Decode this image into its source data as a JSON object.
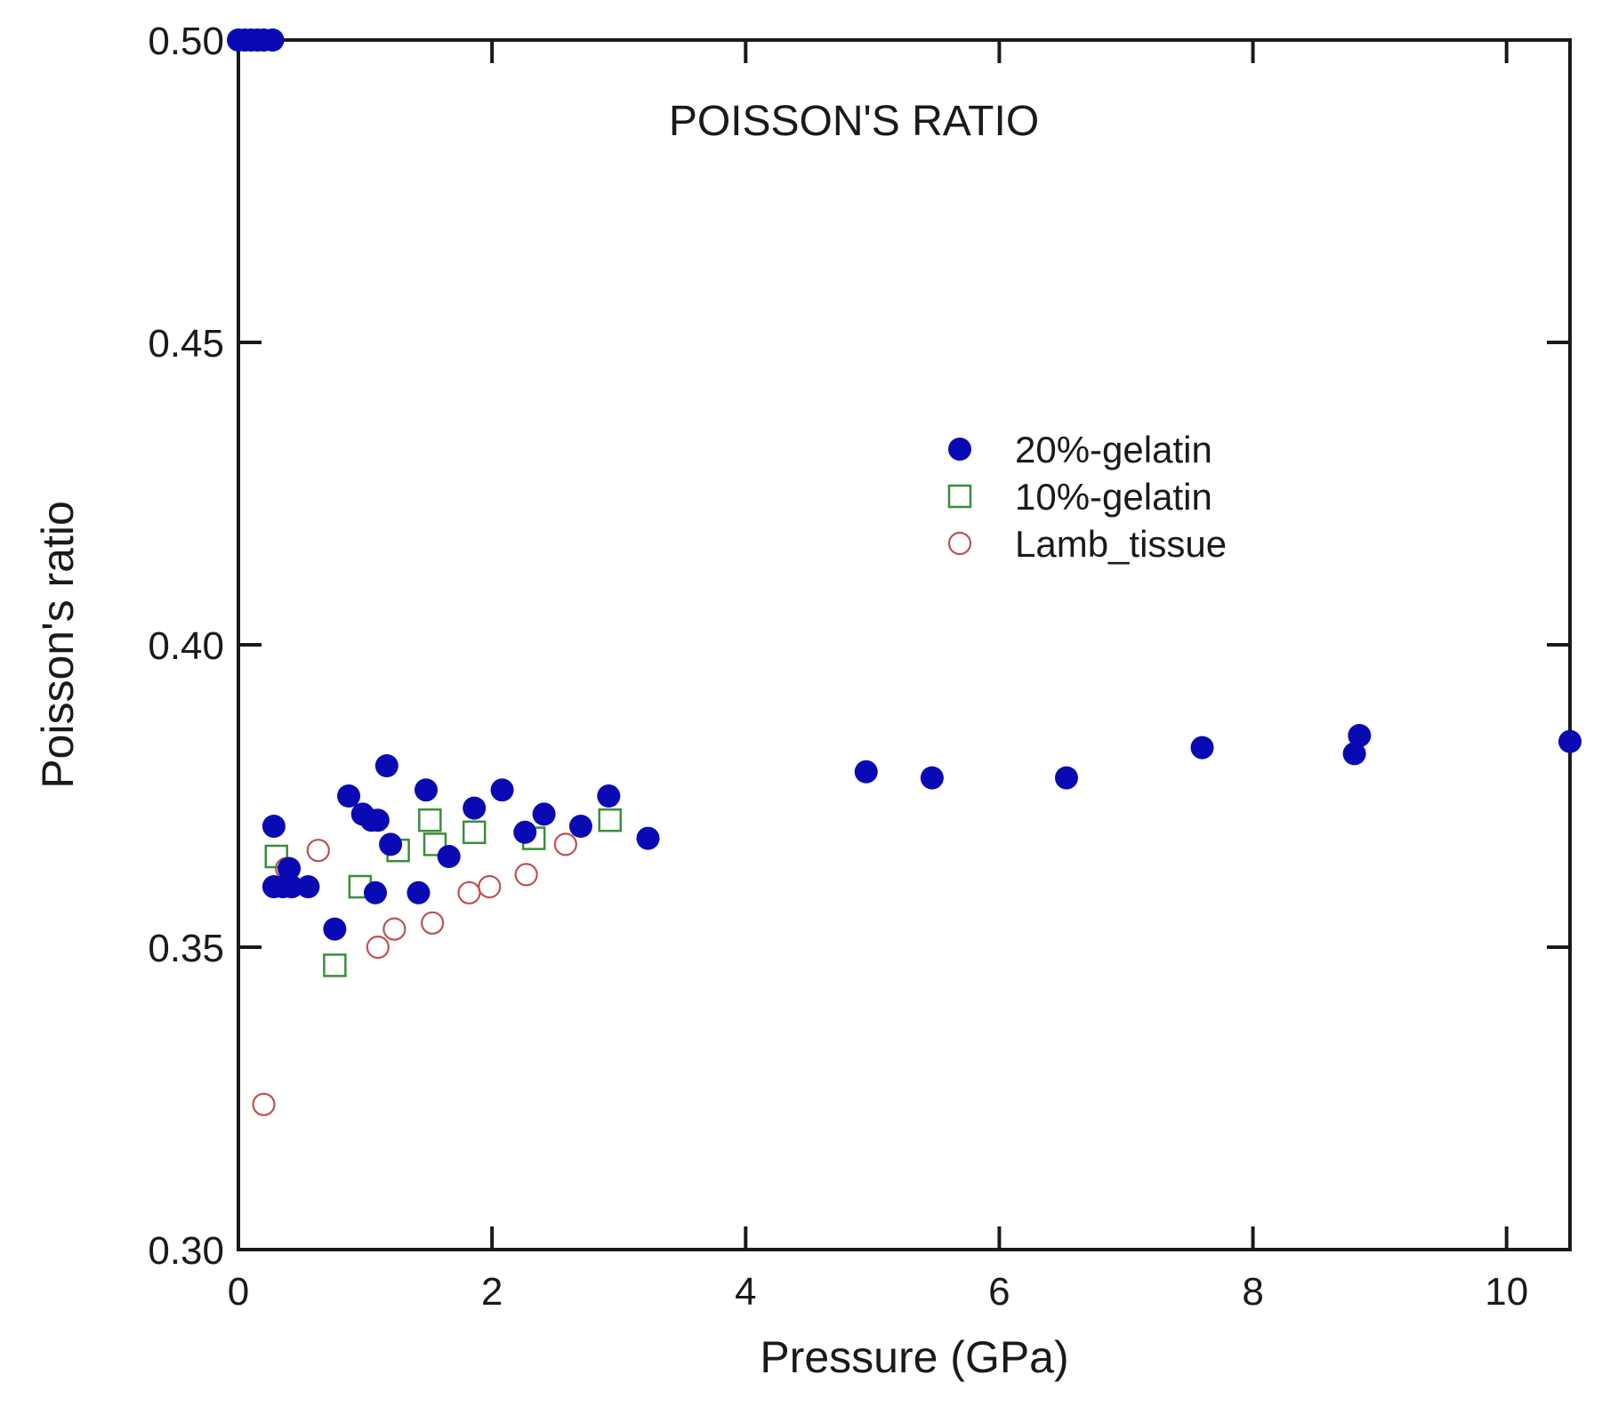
{
  "chart_data": {
    "type": "scatter",
    "title": "POISSON'S RATIO",
    "xlabel": "Pressure (GPa)",
    "ylabel": "Poisson's ratio",
    "xlim": [
      0,
      10.5
    ],
    "ylim": [
      0.3,
      0.5
    ],
    "xticks": [
      0,
      2,
      4,
      6,
      8,
      10
    ],
    "xtick_labels": [
      "0",
      "2",
      "4",
      "6",
      "8",
      "10"
    ],
    "yticks": [
      0.3,
      0.35,
      0.4,
      0.45,
      0.5
    ],
    "ytick_labels": [
      "0.30",
      "0.35",
      "0.40",
      "0.45",
      "0.50"
    ],
    "grid": false,
    "legend_position": "right-center",
    "series": [
      {
        "name": "20%-gelatin",
        "marker": "filled-circle",
        "color": "#0a0ab4",
        "points": [
          [
            0.0,
            0.5
          ],
          [
            0.05,
            0.5
          ],
          [
            0.1,
            0.5
          ],
          [
            0.15,
            0.5
          ],
          [
            0.2,
            0.5
          ],
          [
            0.27,
            0.5
          ],
          [
            0.28,
            0.37
          ],
          [
            0.28,
            0.36
          ],
          [
            0.35,
            0.36
          ],
          [
            0.42,
            0.36
          ],
          [
            0.4,
            0.363
          ],
          [
            0.55,
            0.36
          ],
          [
            0.76,
            0.353
          ],
          [
            0.87,
            0.375
          ],
          [
            0.98,
            0.372
          ],
          [
            1.05,
            0.371
          ],
          [
            1.1,
            0.371
          ],
          [
            1.08,
            0.359
          ],
          [
            1.17,
            0.38
          ],
          [
            1.2,
            0.367
          ],
          [
            1.42,
            0.359
          ],
          [
            1.48,
            0.376
          ],
          [
            1.66,
            0.365
          ],
          [
            1.86,
            0.373
          ],
          [
            2.08,
            0.376
          ],
          [
            2.26,
            0.369
          ],
          [
            2.41,
            0.372
          ],
          [
            2.7,
            0.37
          ],
          [
            2.92,
            0.375
          ],
          [
            3.23,
            0.368
          ],
          [
            4.95,
            0.379
          ],
          [
            5.47,
            0.378
          ],
          [
            6.53,
            0.378
          ],
          [
            7.6,
            0.383
          ],
          [
            8.8,
            0.382
          ],
          [
            8.84,
            0.385
          ],
          [
            10.5,
            0.384
          ]
        ]
      },
      {
        "name": "10%-gelatin",
        "marker": "open-square",
        "color": "#3c8c3c",
        "points": [
          [
            0.3,
            0.365
          ],
          [
            0.76,
            0.347
          ],
          [
            0.96,
            0.36
          ],
          [
            1.26,
            0.366
          ],
          [
            1.51,
            0.371
          ],
          [
            1.55,
            0.367
          ],
          [
            1.86,
            0.369
          ],
          [
            2.33,
            0.368
          ],
          [
            2.93,
            0.371
          ]
        ]
      },
      {
        "name": "Lamb_tissue",
        "marker": "open-circle",
        "color": "#c05050",
        "points": [
          [
            0.2,
            0.324
          ],
          [
            0.38,
            0.363
          ],
          [
            0.63,
            0.366
          ],
          [
            1.1,
            0.35
          ],
          [
            1.23,
            0.353
          ],
          [
            1.53,
            0.354
          ],
          [
            1.82,
            0.359
          ],
          [
            1.98,
            0.36
          ],
          [
            2.27,
            0.362
          ],
          [
            2.58,
            0.367
          ]
        ]
      }
    ]
  }
}
